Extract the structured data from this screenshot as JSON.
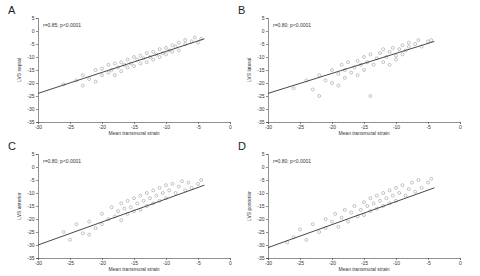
{
  "chart_data": [
    {
      "type": "scatter",
      "title": "A",
      "annotation": "r=0.85; p<0.0001",
      "xlabel": "Mean transmural strain",
      "ylabel": "LVS septal",
      "xlim": [
        -30,
        0
      ],
      "xticks": [
        -30,
        -25,
        -20,
        -15,
        -10,
        -5,
        0
      ],
      "ylim": [
        -35,
        5
      ],
      "yticks": [
        -35,
        -30,
        -25,
        -20,
        -15,
        -10,
        -5,
        0,
        5
      ],
      "grid": false,
      "series": [
        {
          "type": "scatter",
          "marker": "circle",
          "color": "#8a8a8a",
          "x": [
            -26,
            -24,
            -23,
            -22,
            -21,
            -20,
            -20,
            -19,
            -19,
            -18.5,
            -18,
            -18,
            -17.5,
            -17,
            -17,
            -16.5,
            -16,
            -16,
            -15.5,
            -15,
            -15,
            -14.5,
            -14,
            -14,
            -13.5,
            -13,
            -13,
            -12.5,
            -12,
            -12,
            -11.5,
            -11,
            -11,
            -10.5,
            -10,
            -10,
            -9.5,
            -9,
            -9,
            -8.5,
            -8,
            -8,
            -7,
            -7,
            -6,
            -5.5,
            -5,
            -4.5,
            -21,
            -23
          ],
          "values": [
            -20.5,
            -19,
            -17,
            -18.5,
            -15,
            -17,
            -14.5,
            -16,
            -13,
            -15,
            -12.5,
            -17,
            -14,
            -12,
            -15.5,
            -13,
            -11,
            -14,
            -12.5,
            -10,
            -13.5,
            -11,
            -9.5,
            -12.5,
            -10.5,
            -8.5,
            -12,
            -10,
            -8,
            -11,
            -9,
            -7,
            -10,
            -8.5,
            -6.5,
            -9,
            -7.5,
            -5.5,
            -8,
            -6,
            -4.5,
            -7.5,
            -5,
            -3.5,
            -4,
            -2.5,
            -4.5,
            -3,
            -19.5,
            -21
          ]
        },
        {
          "type": "line",
          "line_style": "solid",
          "color": "#333333",
          "x": [
            -30,
            -4
          ],
          "values": [
            -24,
            -3
          ]
        }
      ]
    },
    {
      "type": "scatter",
      "title": "B",
      "annotation": "r=0.80; p<0.0001",
      "xlabel": "Mean transmural strain",
      "ylabel": "LVS lateral",
      "xlim": [
        -30,
        0
      ],
      "xticks": [
        -30,
        -25,
        -20,
        -15,
        -10,
        -5,
        0
      ],
      "ylim": [
        -35,
        5
      ],
      "yticks": [
        -35,
        -30,
        -25,
        -20,
        -15,
        -10,
        -5,
        0,
        5
      ],
      "grid": false,
      "series": [
        {
          "type": "scatter",
          "marker": "circle",
          "color": "#8a8a8a",
          "x": [
            -26,
            -24,
            -23,
            -22,
            -21,
            -20,
            -20,
            -19,
            -18.5,
            -18,
            -18,
            -17.5,
            -17,
            -16.5,
            -16,
            -16,
            -15.5,
            -15,
            -15,
            -14.5,
            -14,
            -14,
            -13.5,
            -13,
            -12.5,
            -12,
            -12,
            -11.5,
            -11,
            -11,
            -10.5,
            -10,
            -10,
            -9.5,
            -9,
            -9,
            -8.5,
            -8,
            -8,
            -7,
            -6.5,
            -6,
            -5,
            -4.5,
            -19,
            -22
          ],
          "values": [
            -22,
            -19,
            -22.5,
            -17,
            -19,
            -15,
            -20,
            -16.5,
            -13,
            -18,
            -15,
            -12,
            -16,
            -14,
            -11.5,
            -17,
            -13,
            -10,
            -15,
            -12,
            -9,
            -25,
            -13,
            -10.5,
            -8.5,
            -12,
            -7,
            -10,
            -8,
            -13,
            -6.5,
            -9.5,
            -11,
            -7,
            -5.5,
            -9,
            -7.5,
            -4.5,
            -6,
            -5,
            -3.5,
            -6,
            -4,
            -3.5,
            -21,
            -25
          ]
        },
        {
          "type": "line",
          "line_style": "solid",
          "color": "#333333",
          "x": [
            -30,
            -4
          ],
          "values": [
            -24,
            -4
          ]
        }
      ]
    },
    {
      "type": "scatter",
      "title": "C",
      "annotation": "r=0.80; p<0.0001",
      "xlabel": "Mean transmural strain",
      "ylabel": "LVS anterior",
      "xlim": [
        -30,
        0
      ],
      "xticks": [
        -30,
        -25,
        -20,
        -15,
        -10,
        -5,
        0
      ],
      "ylim": [
        -35,
        5
      ],
      "yticks": [
        -35,
        -30,
        -25,
        -20,
        -15,
        -10,
        -5,
        0,
        5
      ],
      "grid": false,
      "series": [
        {
          "type": "scatter",
          "marker": "circle",
          "color": "#8a8a8a",
          "x": [
            -26,
            -25,
            -24,
            -23,
            -22,
            -21,
            -20,
            -20,
            -19,
            -18.5,
            -18,
            -17.5,
            -17,
            -17,
            -16.5,
            -16,
            -16,
            -15.5,
            -15,
            -15,
            -14.5,
            -14,
            -14,
            -13.5,
            -13,
            -13,
            -12.5,
            -12,
            -12,
            -11.5,
            -11,
            -11,
            -10.5,
            -10,
            -10,
            -9.5,
            -9,
            -8.5,
            -8,
            -7.5,
            -7,
            -6.5,
            -6,
            -5,
            -4.5,
            -22
          ],
          "values": [
            -25,
            -28,
            -22,
            -25.5,
            -21,
            -23.5,
            -18,
            -22,
            -20,
            -15.5,
            -19,
            -17,
            -14,
            -20.5,
            -16,
            -18,
            -13,
            -15.5,
            -17,
            -12,
            -14,
            -11,
            -16.5,
            -13,
            -10,
            -15,
            -12,
            -9,
            -14,
            -11,
            -8,
            -13,
            -10,
            -7,
            -12,
            -9,
            -6.5,
            -10,
            -7.5,
            -5.5,
            -9,
            -6,
            -8,
            -6.5,
            -5,
            -26
          ]
        },
        {
          "type": "line",
          "line_style": "solid",
          "color": "#333333",
          "x": [
            -30,
            -4
          ],
          "values": [
            -30,
            -7
          ]
        }
      ]
    },
    {
      "type": "scatter",
      "title": "D",
      "annotation": "r=0.80; p<0.0001",
      "xlabel": "Mean transmural strain",
      "ylabel": "LVS posterior",
      "xlim": [
        -30,
        0
      ],
      "xticks": [
        -30,
        -25,
        -20,
        -15,
        -10,
        -5,
        0
      ],
      "ylim": [
        -35,
        5
      ],
      "yticks": [
        -35,
        -30,
        -25,
        -20,
        -15,
        -10,
        -5,
        0,
        5
      ],
      "grid": false,
      "series": [
        {
          "type": "scatter",
          "marker": "circle",
          "color": "#8a8a8a",
          "x": [
            -26,
            -25,
            -24,
            -23,
            -22,
            -21,
            -21,
            -20,
            -19.5,
            -19,
            -18.5,
            -18,
            -17.5,
            -17,
            -16.5,
            -16,
            -15.5,
            -15,
            -15,
            -14.5,
            -14,
            -14,
            -13.5,
            -13,
            -13,
            -12.5,
            -12,
            -12,
            -11.5,
            -11,
            -11,
            -10.5,
            -10,
            -10,
            -9.5,
            -9,
            -8.5,
            -8,
            -7.5,
            -7,
            -6.5,
            -6,
            -5,
            -4.5,
            -27
          ],
          "values": [
            -27,
            -24,
            -28,
            -22,
            -25,
            -20,
            -23.5,
            -21,
            -18,
            -23,
            -19.5,
            -16.5,
            -21,
            -17.5,
            -15,
            -19,
            -16.5,
            -13.5,
            -18.5,
            -15,
            -12,
            -17,
            -14,
            -11,
            -16,
            -13,
            -10,
            -15,
            -12,
            -9,
            -14,
            -11,
            -8,
            -13,
            -10,
            -7,
            -11,
            -8.5,
            -6,
            -9.5,
            -5,
            -8,
            -6,
            -4.5,
            -29
          ]
        },
        {
          "type": "line",
          "line_style": "solid",
          "color": "#333333",
          "x": [
            -30,
            -4
          ],
          "values": [
            -31,
            -8
          ]
        }
      ]
    }
  ]
}
